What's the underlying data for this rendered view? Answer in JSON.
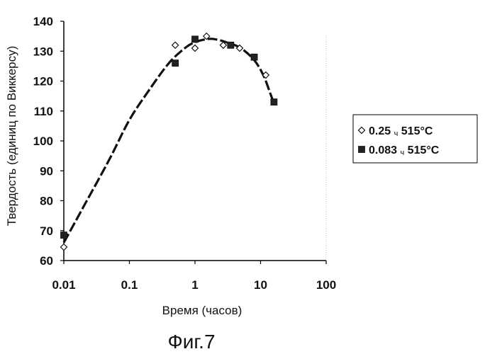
{
  "figure_label": "Фиг.7",
  "chart_data": {
    "type": "scatter",
    "xlabel": "Время (часов)",
    "ylabel": "Твердость (единиц по Виккерсу)",
    "xscale": "log",
    "xlim": [
      0.01,
      100
    ],
    "ylim": [
      60,
      140
    ],
    "x_ticks": [
      0.01,
      0.1,
      1,
      10,
      100
    ],
    "x_tick_labels": [
      "0.01",
      "0.1",
      "1",
      "10",
      "100"
    ],
    "y_ticks": [
      60,
      70,
      80,
      90,
      100,
      110,
      120,
      130,
      140
    ],
    "y_tick_labels": [
      "60",
      "70",
      "80",
      "90",
      "100",
      "110",
      "120",
      "130",
      "140"
    ],
    "grid": false,
    "legend_position": "right",
    "series": [
      {
        "name": "0.25",
        "name_subscript": "ч",
        "name_suffix": "515°C",
        "marker": "diamond",
        "color": "#000000",
        "points": [
          [
            0.01,
            64.5
          ],
          [
            0.5,
            132
          ],
          [
            1.0,
            131
          ],
          [
            1.5,
            135
          ],
          [
            2.7,
            132
          ],
          [
            4.8,
            131
          ],
          [
            12.0,
            122
          ]
        ]
      },
      {
        "name": "0.083",
        "name_subscript": "ч",
        "name_suffix": "515°C",
        "marker": "square",
        "color": "#000000",
        "points": [
          [
            0.01,
            68.5
          ],
          [
            0.5,
            126
          ],
          [
            1.0,
            134
          ],
          [
            3.5,
            132
          ],
          [
            8.0,
            128
          ],
          [
            16.0,
            113
          ]
        ]
      }
    ],
    "trend_line": {
      "style": "dashed",
      "color": "#000000",
      "points": [
        [
          0.01,
          66
        ],
        [
          0.02,
          78
        ],
        [
          0.05,
          94
        ],
        [
          0.1,
          107
        ],
        [
          0.2,
          117
        ],
        [
          0.4,
          126
        ],
        [
          0.7,
          131
        ],
        [
          1.0,
          133
        ],
        [
          1.5,
          134
        ],
        [
          2.0,
          134
        ],
        [
          3.0,
          133
        ],
        [
          5.0,
          131
        ],
        [
          8.0,
          127
        ],
        [
          11.0,
          122
        ],
        [
          14.0,
          116
        ],
        [
          16.0,
          112.5
        ]
      ]
    }
  }
}
